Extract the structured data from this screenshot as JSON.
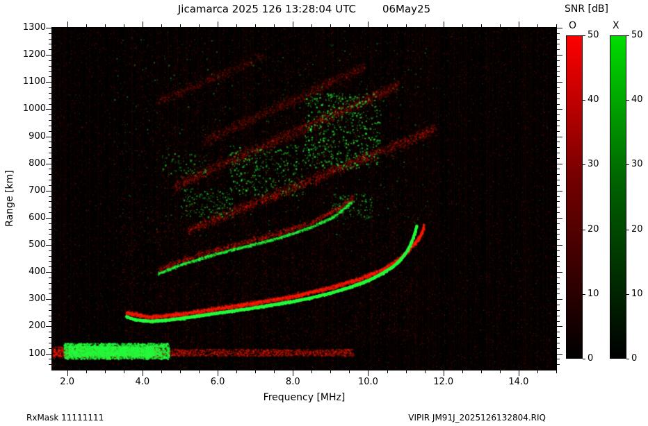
{
  "header": {
    "title": "Jicamarca 2025 126 13:28:04 UTC",
    "date": "06May25",
    "colorbar_title": "SNR [dB]"
  },
  "footer": {
    "rx_mask": "RxMask 11111111",
    "file": "VIPIR  JM91J_2025126132804.RIQ"
  },
  "chart_data": {
    "type": "heatmap",
    "title": "Jicamarca 2025 126 13:28:04 UTC 06May25",
    "xlabel": "Frequency [MHz]",
    "ylabel": "Range [km]",
    "xlim": [
      1.6,
      15.0
    ],
    "ylim": [
      40,
      1300
    ],
    "xticks": [
      2.0,
      4.0,
      6.0,
      8.0,
      10.0,
      12.0,
      14.0
    ],
    "xtick_labels": [
      "2.0",
      "4.0",
      "6.0",
      "8.0",
      "10.0",
      "12.0",
      "14.0"
    ],
    "yticks": [
      100,
      200,
      300,
      400,
      500,
      600,
      700,
      800,
      900,
      1000,
      1100,
      1200,
      1300
    ],
    "x_minor_step": 0.5,
    "y_minor_step": 20,
    "background": "#000000",
    "colorbars": [
      {
        "label": "O",
        "color": "#ff0000",
        "ticks": [
          0,
          10,
          20,
          30,
          40,
          50
        ],
        "range": [
          0,
          50
        ]
      },
      {
        "label": "X",
        "color": "#00dd00",
        "ticks": [
          0,
          10,
          20,
          30,
          40,
          50
        ],
        "range": [
          0,
          50
        ]
      }
    ],
    "noise": {
      "red_dots": 26000,
      "green_dots": 2400,
      "stripe_prob": 0.55
    },
    "traces": [
      {
        "name": "red-haze-low",
        "mode": "O",
        "kind": "blob",
        "rect": [
          3.4,
          11.3,
          140,
          600
        ],
        "n": 2600,
        "alpha": 0.2,
        "size": 1.5
      },
      {
        "name": "red-haze-high",
        "mode": "O",
        "kind": "blob",
        "rect": [
          3.8,
          11.8,
          600,
          1230
        ],
        "n": 1800,
        "alpha": 0.16,
        "size": 1.5
      },
      {
        "name": "oblique-band-1",
        "mode": "O",
        "kind": "curve",
        "points": [
          [
            5.2,
            555
          ],
          [
            11.8,
            930
          ]
        ],
        "width": 13,
        "density": 6,
        "alpha": 0.3,
        "size": 1.6
      },
      {
        "name": "oblique-band-2",
        "mode": "O",
        "kind": "curve",
        "points": [
          [
            4.8,
            715
          ],
          [
            10.8,
            1090
          ]
        ],
        "width": 15,
        "density": 6,
        "alpha": 0.28,
        "size": 1.6
      },
      {
        "name": "oblique-band-3",
        "mode": "O",
        "kind": "curve",
        "points": [
          [
            5.6,
            880
          ],
          [
            9.9,
            1160
          ]
        ],
        "width": 13,
        "density": 5,
        "alpha": 0.22,
        "size": 1.6
      },
      {
        "name": "oblique-band-4",
        "mode": "O",
        "kind": "curve",
        "points": [
          [
            4.4,
            1030
          ],
          [
            7.2,
            1195
          ]
        ],
        "width": 11,
        "density": 4,
        "alpha": 0.2,
        "size": 1.6
      },
      {
        "name": "spread-cluster-1",
        "mode": "X",
        "kind": "blob",
        "rect": [
          8.3,
          10.3,
          780,
          1060
        ],
        "n": 650,
        "alpha": 0.75,
        "size": 2.0
      },
      {
        "name": "spread-cluster-2",
        "mode": "X",
        "kind": "blob",
        "rect": [
          6.3,
          8.3,
          680,
          870
        ],
        "n": 330,
        "alpha": 0.65,
        "size": 2.0
      },
      {
        "name": "spread-cluster-3",
        "mode": "X",
        "kind": "blob",
        "rect": [
          5.0,
          6.4,
          600,
          710
        ],
        "n": 180,
        "alpha": 0.6,
        "size": 1.8
      },
      {
        "name": "spread-cluster-4",
        "mode": "X",
        "kind": "blob",
        "rect": [
          9.0,
          10.1,
          590,
          690
        ],
        "n": 110,
        "alpha": 0.6,
        "size": 1.8
      },
      {
        "name": "spread-cluster-5",
        "mode": "X",
        "kind": "blob",
        "rect": [
          4.5,
          5.7,
          750,
          840
        ],
        "n": 90,
        "alpha": 0.55,
        "size": 1.8
      },
      {
        "name": "green-scatter",
        "mode": "X",
        "kind": "blob",
        "rect": [
          3.2,
          11.6,
          520,
          1260
        ],
        "n": 420,
        "alpha": 0.4,
        "size": 1.5
      },
      {
        "name": "e-region-o-band",
        "mode": "O",
        "kind": "blob",
        "rect": [
          1.6,
          9.6,
          92,
          118
        ],
        "n": 2600,
        "alpha": 0.45,
        "size": 1.6
      },
      {
        "name": "e-region-o-strong",
        "mode": "O",
        "kind": "blob",
        "rect": [
          1.6,
          4.5,
          85,
          128
        ],
        "n": 1200,
        "alpha": 0.5,
        "size": 1.8
      },
      {
        "name": "e-region-x-blob",
        "mode": "X",
        "kind": "blob",
        "rect": [
          1.9,
          4.7,
          82,
          140
        ],
        "n": 2800,
        "alpha": 0.85,
        "size": 2.0
      },
      {
        "name": "e-region-x-core",
        "mode": "X",
        "kind": "blob",
        "rect": [
          2.0,
          4.3,
          92,
          128
        ],
        "n": 1500,
        "alpha": 0.95,
        "size": 2.2
      },
      {
        "name": "second-hop-o",
        "mode": "O",
        "kind": "curve",
        "points": [
          [
            4.4,
            410
          ],
          [
            5.5,
            465
          ],
          [
            6.5,
            503
          ],
          [
            7.5,
            540
          ],
          [
            8.5,
            585
          ],
          [
            9.3,
            645
          ],
          [
            9.6,
            680
          ]
        ],
        "width": 7,
        "density": 4,
        "alpha": 0.35,
        "size": 1.8
      },
      {
        "name": "second-hop-x",
        "mode": "X",
        "kind": "curve",
        "core": 1,
        "core_alpha": 0.35,
        "points": [
          [
            4.4,
            395
          ],
          [
            5.0,
            428
          ],
          [
            5.5,
            450
          ],
          [
            6.0,
            470
          ],
          [
            6.5,
            488
          ],
          [
            7.0,
            505
          ],
          [
            7.5,
            523
          ],
          [
            8.0,
            544
          ],
          [
            8.5,
            568
          ],
          [
            9.0,
            600
          ],
          [
            9.3,
            628
          ],
          [
            9.55,
            660
          ]
        ],
        "width": 3,
        "density": 5,
        "alpha": 0.6,
        "size": 1.7
      },
      {
        "name": "f-trace-o",
        "mode": "O",
        "kind": "curve",
        "core": 1.5,
        "core_alpha": 0.5,
        "points": [
          [
            3.55,
            252
          ],
          [
            4.2,
            236
          ],
          [
            5.0,
            246
          ],
          [
            6.0,
            267
          ],
          [
            7.0,
            288
          ],
          [
            8.0,
            312
          ],
          [
            9.0,
            344
          ],
          [
            9.8,
            378
          ],
          [
            10.4,
            412
          ],
          [
            10.8,
            448
          ],
          [
            11.05,
            480
          ],
          [
            11.25,
            510
          ],
          [
            11.38,
            535
          ],
          [
            11.45,
            558
          ],
          [
            11.47,
            575
          ]
        ],
        "width": 5,
        "density": 9,
        "alpha": 0.55,
        "size": 1.8
      },
      {
        "name": "f-trace-x",
        "mode": "X",
        "kind": "curve",
        "core": 2,
        "core_alpha": 0.85,
        "points": [
          [
            3.55,
            238
          ],
          [
            3.8,
            226
          ],
          [
            4.2,
            221
          ],
          [
            4.6,
            224
          ],
          [
            5.0,
            231
          ],
          [
            5.5,
            241
          ],
          [
            6.0,
            251
          ],
          [
            6.5,
            261
          ],
          [
            7.0,
            271
          ],
          [
            7.5,
            282
          ],
          [
            8.0,
            294
          ],
          [
            8.5,
            308
          ],
          [
            9.0,
            325
          ],
          [
            9.5,
            346
          ],
          [
            10.0,
            371
          ],
          [
            10.35,
            396
          ],
          [
            10.65,
            422
          ],
          [
            10.85,
            448
          ],
          [
            11.0,
            474
          ],
          [
            11.1,
            500
          ],
          [
            11.18,
            526
          ],
          [
            11.24,
            552
          ],
          [
            11.28,
            572
          ]
        ],
        "width": 2.5,
        "density": 16,
        "alpha": 0.95,
        "size": 1.7
      }
    ]
  }
}
